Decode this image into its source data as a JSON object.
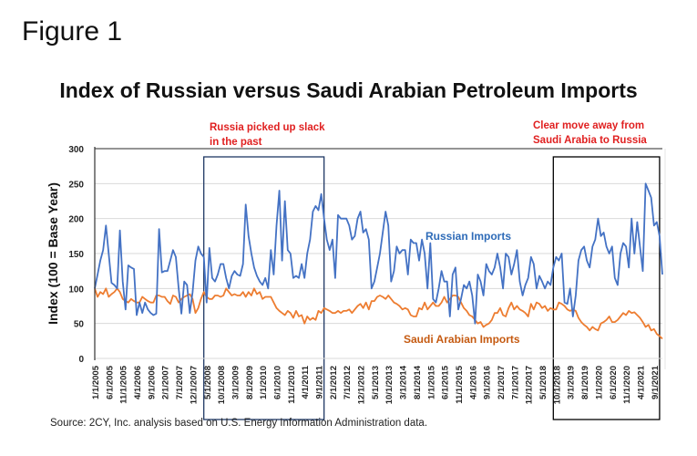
{
  "figure_label": "Figure 1",
  "source": "Source: 2CY, Inc. analysis based on U.S. Energy Information Administration data.",
  "annotations": [
    {
      "lines": [
        "Russia picked up slack",
        "in the past"
      ],
      "color": "#e02020",
      "box_start": "4/1/2008",
      "box_end": "11/1/2011"
    },
    {
      "lines": [
        "Clear move away from",
        "Saudi Arabia to Russia"
      ],
      "color": "#e02020",
      "box_start": "9/1/2018",
      "box_end": "11/1/2021"
    }
  ],
  "chart_data": {
    "type": "line",
    "title": "Index of Russian versus Saudi Arabian Petroleum Imports",
    "xlabel": "",
    "ylabel": "Index (100 = Base Year)",
    "ylim": [
      0,
      300
    ],
    "yticks": [
      0,
      50,
      100,
      150,
      200,
      250,
      300
    ],
    "grid": true,
    "x_start": "1/1/2005",
    "x_frequency": "monthly",
    "x_tick_labels": [
      "1/1/2005",
      "6/1/2005",
      "11/1/2005",
      "4/1/2006",
      "9/1/2006",
      "2/1/2007",
      "7/1/2007",
      "12/1/2007",
      "5/1/2008",
      "10/1/2008",
      "3/1/2009",
      "8/1/2009",
      "1/1/2010",
      "6/1/2010",
      "11/1/2010",
      "4/1/2011",
      "9/1/2011",
      "2/1/2012",
      "7/1/2012",
      "12/1/2012",
      "5/1/2013",
      "10/1/2013",
      "3/1/2014",
      "8/1/2014",
      "1/1/2015",
      "6/1/2015",
      "11/1/2015",
      "4/1/2016",
      "9/1/2016",
      "2/1/2017",
      "7/1/2017",
      "12/1/2017",
      "5/1/2018",
      "10/1/2018",
      "3/1/2019",
      "8/1/2019",
      "1/1/2020",
      "6/1/2020",
      "11/1/2020",
      "4/1/2021",
      "9/1/2021"
    ],
    "series": [
      {
        "name": "Russian Imports",
        "color": "#4472c4",
        "label_color": "#2e6bb8",
        "values": [
          100,
          120,
          140,
          155,
          190,
          150,
          108,
          105,
          100,
          183,
          110,
          70,
          133,
          130,
          128,
          62,
          80,
          65,
          80,
          70,
          65,
          62,
          64,
          185,
          123,
          125,
          125,
          140,
          155,
          145,
          100,
          64,
          110,
          105,
          65,
          95,
          140,
          160,
          150,
          145,
          80,
          158,
          115,
          110,
          120,
          135,
          135,
          115,
          100,
          118,
          125,
          120,
          118,
          135,
          220,
          175,
          150,
          130,
          118,
          110,
          105,
          115,
          100,
          155,
          120,
          190,
          240,
          140,
          225,
          155,
          150,
          115,
          118,
          115,
          135,
          115,
          150,
          170,
          210,
          218,
          212,
          235,
          200,
          170,
          155,
          170,
          115,
          205,
          200,
          200,
          200,
          190,
          170,
          175,
          200,
          210,
          180,
          185,
          170,
          100,
          110,
          130,
          150,
          180,
          210,
          190,
          110,
          125,
          160,
          150,
          155,
          155,
          120,
          170,
          165,
          165,
          140,
          170,
          150,
          100,
          165,
          85,
          80,
          100,
          125,
          110,
          110,
          60,
          120,
          130,
          70,
          85,
          105,
          100,
          110,
          90,
          50,
          120,
          110,
          90,
          135,
          125,
          120,
          130,
          150,
          130,
          100,
          150,
          145,
          120,
          135,
          155,
          110,
          90,
          105,
          115,
          145,
          135,
          100,
          118,
          110,
          100,
          110,
          105,
          130,
          145,
          140,
          150,
          80,
          78,
          100,
          60,
          90,
          140,
          155,
          160,
          140,
          130,
          160,
          170,
          200,
          175,
          180,
          160,
          150,
          160,
          115,
          105,
          150,
          165,
          160,
          130,
          200,
          150,
          195,
          160,
          125,
          250,
          240,
          230,
          190,
          195,
          175,
          120
        ],
        "label": "Russian Imports"
      },
      {
        "name": "Saudi Arabian Imports",
        "color": "#ed7d31",
        "label_color": "#c55a11",
        "values": [
          100,
          88,
          95,
          92,
          100,
          88,
          92,
          95,
          100,
          95,
          85,
          82,
          80,
          85,
          82,
          80,
          80,
          88,
          85,
          82,
          80,
          80,
          90,
          90,
          88,
          88,
          82,
          78,
          90,
          88,
          80,
          85,
          88,
          90,
          92,
          85,
          65,
          72,
          85,
          95,
          88,
          85,
          85,
          90,
          90,
          88,
          90,
          100,
          95,
          90,
          92,
          90,
          90,
          95,
          88,
          95,
          90,
          100,
          92,
          95,
          85,
          88,
          88,
          88,
          80,
          72,
          68,
          65,
          62,
          68,
          65,
          58,
          68,
          60,
          62,
          50,
          60,
          55,
          58,
          55,
          68,
          65,
          72,
          70,
          68,
          65,
          65,
          68,
          65,
          68,
          68,
          70,
          65,
          70,
          75,
          78,
          72,
          80,
          70,
          82,
          82,
          88,
          90,
          88,
          85,
          90,
          85,
          80,
          78,
          75,
          70,
          72,
          70,
          62,
          60,
          60,
          72,
          70,
          80,
          70,
          75,
          80,
          75,
          75,
          80,
          88,
          80,
          85,
          90,
          90,
          88,
          80,
          72,
          68,
          62,
          60,
          55,
          50,
          52,
          45,
          48,
          50,
          55,
          65,
          65,
          72,
          62,
          60,
          72,
          80,
          70,
          75,
          70,
          68,
          65,
          60,
          78,
          70,
          80,
          78,
          72,
          75,
          68,
          72,
          70,
          70,
          80,
          78,
          75,
          70,
          68,
          70,
          68,
          58,
          52,
          48,
          45,
          40,
          45,
          42,
          40,
          50,
          52,
          55,
          60,
          52,
          52,
          55,
          60,
          65,
          62,
          68,
          65,
          66,
          62,
          58,
          52,
          45,
          48,
          40,
          42,
          35,
          32,
          28
        ],
        "label": "Saudi Arabian Imports"
      }
    ]
  }
}
